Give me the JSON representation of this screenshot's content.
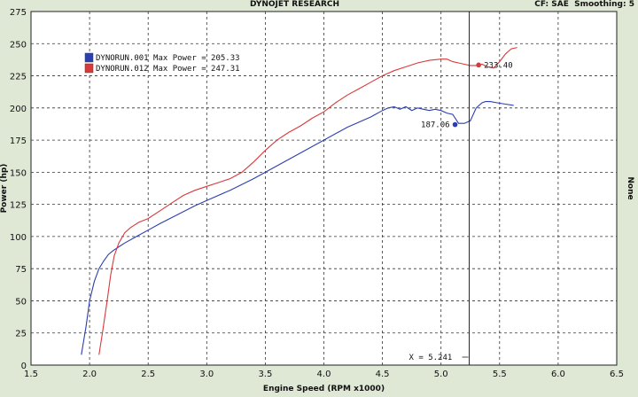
{
  "header": {
    "title": "DYNOJET RESEARCH",
    "status": "CF: SAE  Smoothing: 5"
  },
  "chart_data": {
    "type": "line",
    "title": "DYNOJET RESEARCH",
    "xlabel": "Engine Speed (RPM x1000)",
    "ylabel": "Power (hp)",
    "right_label": "None",
    "xlim": [
      1.5,
      6.5
    ],
    "ylim": [
      0,
      275
    ],
    "x_ticks": [
      "1.5",
      "2.0",
      "2.5",
      "3.0",
      "3.5",
      "4.0",
      "4.5",
      "5.0",
      "5.5",
      "6.0",
      "6.5"
    ],
    "y_ticks": [
      "0",
      "25",
      "50",
      "75",
      "100",
      "125",
      "150",
      "175",
      "200",
      "225",
      "250",
      "275"
    ],
    "grid": true,
    "legend_position": "top-left",
    "series": [
      {
        "name": "DYNORUN.001 Max Power = 205.33",
        "color": "#2b3fb0",
        "x": [
          1.93,
          1.97,
          2.0,
          2.04,
          2.08,
          2.12,
          2.16,
          2.2,
          2.25,
          2.3,
          2.4,
          2.5,
          2.6,
          2.75,
          2.9,
          3.0,
          3.2,
          3.4,
          3.6,
          3.8,
          4.0,
          4.2,
          4.4,
          4.5,
          4.55,
          4.6,
          4.65,
          4.7,
          4.75,
          4.8,
          4.85,
          4.9,
          4.95,
          5.0,
          5.05,
          5.1,
          5.15,
          5.2,
          5.25,
          5.3,
          5.35,
          5.38,
          5.42,
          5.48,
          5.55,
          5.62
        ],
        "values": [
          8,
          30,
          50,
          65,
          75,
          81,
          86,
          89,
          92,
          95,
          100,
          105,
          110,
          117,
          124,
          128,
          136,
          145,
          155,
          165,
          175,
          185,
          193,
          198,
          200,
          201,
          199,
          201,
          198,
          200,
          199,
          198,
          199,
          198,
          196,
          195,
          188,
          188,
          190,
          200,
          204,
          205,
          205,
          204,
          203,
          202
        ]
      },
      {
        "name": "DYNORUN.012 Max Power = 247.31",
        "color": "#d83a3a",
        "x": [
          2.08,
          2.11,
          2.15,
          2.18,
          2.21,
          2.25,
          2.3,
          2.35,
          2.42,
          2.5,
          2.6,
          2.7,
          2.8,
          2.9,
          3.0,
          3.1,
          3.2,
          3.3,
          3.4,
          3.5,
          3.6,
          3.7,
          3.8,
          3.9,
          4.0,
          4.1,
          4.2,
          4.3,
          4.4,
          4.5,
          4.6,
          4.7,
          4.8,
          4.9,
          5.0,
          5.05,
          5.1,
          5.15,
          5.2,
          5.25,
          5.3,
          5.35,
          5.4,
          5.45,
          5.5,
          5.55,
          5.6,
          5.65
        ],
        "values": [
          8,
          25,
          50,
          70,
          85,
          95,
          103,
          107,
          111,
          114,
          120,
          126,
          132,
          136,
          139,
          142,
          145,
          150,
          158,
          167,
          175,
          181,
          186,
          192,
          197,
          204,
          210,
          215,
          220,
          225,
          229,
          232,
          235,
          237,
          238,
          238,
          236,
          235,
          234,
          233,
          233,
          234,
          232,
          231,
          236,
          242,
          246,
          247
        ]
      }
    ],
    "markers": [
      {
        "series": 1,
        "x": 5.321,
        "y": 233.4,
        "label": "233.40"
      },
      {
        "series": 0,
        "x": 5.12,
        "y": 187.06,
        "label": "187.06"
      }
    ],
    "cursor": {
      "x": 5.241,
      "label": "X = 5.241"
    }
  }
}
